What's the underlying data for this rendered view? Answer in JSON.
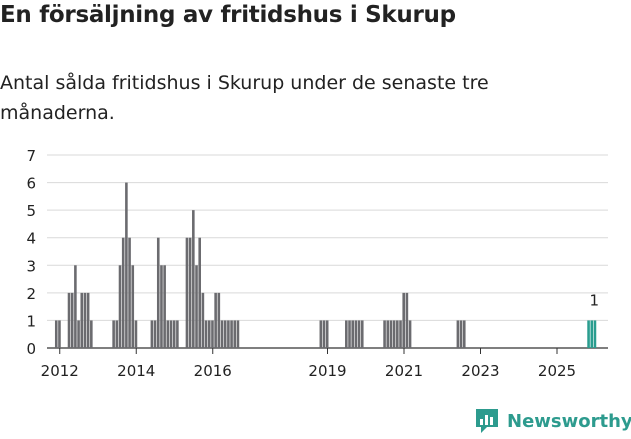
{
  "header": {
    "title": "En försäljning av fritidshus i Skurup",
    "subtitle": "Antal sålda fritidshus i Skurup under de senaste tre månaderna."
  },
  "logo": {
    "text": "Newsworthy",
    "icon": "chart-bubble-icon",
    "color": "#2d9b8e"
  },
  "colors": {
    "bar": "#6b6b6f",
    "highlight": "#2a9d8f",
    "grid": "#d9d9d9",
    "text": "#222222"
  },
  "chart_data": {
    "type": "bar",
    "title": "En försäljning av fritidshus i Skurup",
    "subtitle": "Antal sålda fritidshus i Skurup under de senaste tre månaderna.",
    "ylim": [
      0,
      7
    ],
    "yticks": [
      0,
      1,
      2,
      3,
      4,
      5,
      6,
      7
    ],
    "xlim": [
      "2011-09",
      "2026-05"
    ],
    "xticks": [
      "2012",
      "2014",
      "2016",
      "2019",
      "2021",
      "2023",
      "2025"
    ],
    "grid": true,
    "series": [
      {
        "values": [
          {
            "x": "2011-12",
            "y": 1
          },
          {
            "x": "2012-01",
            "y": 1
          },
          {
            "x": "2012-04",
            "y": 2
          },
          {
            "x": "2012-05",
            "y": 2
          },
          {
            "x": "2012-06",
            "y": 3
          },
          {
            "x": "2012-07",
            "y": 1
          },
          {
            "x": "2012-08",
            "y": 2
          },
          {
            "x": "2012-09",
            "y": 2
          },
          {
            "x": "2012-10",
            "y": 2
          },
          {
            "x": "2012-11",
            "y": 1
          },
          {
            "x": "2013-06",
            "y": 1
          },
          {
            "x": "2013-07",
            "y": 1
          },
          {
            "x": "2013-08",
            "y": 3
          },
          {
            "x": "2013-09",
            "y": 4
          },
          {
            "x": "2013-10",
            "y": 6
          },
          {
            "x": "2013-11",
            "y": 4
          },
          {
            "x": "2013-12",
            "y": 3
          },
          {
            "x": "2014-01",
            "y": 1
          },
          {
            "x": "2014-06",
            "y": 1
          },
          {
            "x": "2014-07",
            "y": 1
          },
          {
            "x": "2014-08",
            "y": 4
          },
          {
            "x": "2014-09",
            "y": 3
          },
          {
            "x": "2014-10",
            "y": 3
          },
          {
            "x": "2014-11",
            "y": 1
          },
          {
            "x": "2014-12",
            "y": 1
          },
          {
            "x": "2015-01",
            "y": 1
          },
          {
            "x": "2015-02",
            "y": 1
          },
          {
            "x": "2015-05",
            "y": 4
          },
          {
            "x": "2015-06",
            "y": 4
          },
          {
            "x": "2015-07",
            "y": 5
          },
          {
            "x": "2015-08",
            "y": 3
          },
          {
            "x": "2015-09",
            "y": 4
          },
          {
            "x": "2015-10",
            "y": 2
          },
          {
            "x": "2015-11",
            "y": 1
          },
          {
            "x": "2015-12",
            "y": 1
          },
          {
            "x": "2016-01",
            "y": 1
          },
          {
            "x": "2016-02",
            "y": 2
          },
          {
            "x": "2016-03",
            "y": 2
          },
          {
            "x": "2016-04",
            "y": 1
          },
          {
            "x": "2016-05",
            "y": 1
          },
          {
            "x": "2016-06",
            "y": 1
          },
          {
            "x": "2016-07",
            "y": 1
          },
          {
            "x": "2016-08",
            "y": 1
          },
          {
            "x": "2016-09",
            "y": 1
          },
          {
            "x": "2018-11",
            "y": 1
          },
          {
            "x": "2018-12",
            "y": 1
          },
          {
            "x": "2019-01",
            "y": 1
          },
          {
            "x": "2019-07",
            "y": 1
          },
          {
            "x": "2019-08",
            "y": 1
          },
          {
            "x": "2019-09",
            "y": 1
          },
          {
            "x": "2019-10",
            "y": 1
          },
          {
            "x": "2019-11",
            "y": 1
          },
          {
            "x": "2019-12",
            "y": 1
          },
          {
            "x": "2020-07",
            "y": 1
          },
          {
            "x": "2020-08",
            "y": 1
          },
          {
            "x": "2020-09",
            "y": 1
          },
          {
            "x": "2020-10",
            "y": 1
          },
          {
            "x": "2020-11",
            "y": 1
          },
          {
            "x": "2020-12",
            "y": 1
          },
          {
            "x": "2021-01",
            "y": 2
          },
          {
            "x": "2021-02",
            "y": 2
          },
          {
            "x": "2021-03",
            "y": 1
          },
          {
            "x": "2022-06",
            "y": 1
          },
          {
            "x": "2022-07",
            "y": 1
          },
          {
            "x": "2022-08",
            "y": 1
          },
          {
            "x": "2025-11",
            "y": 1
          },
          {
            "x": "2025-12",
            "y": 1
          },
          {
            "x": "2026-01",
            "y": 1
          }
        ]
      }
    ],
    "highlight": [
      "2025-11",
      "2025-12",
      "2026-01"
    ],
    "annotations": [
      {
        "x": "2026-01",
        "text": "1"
      }
    ]
  }
}
